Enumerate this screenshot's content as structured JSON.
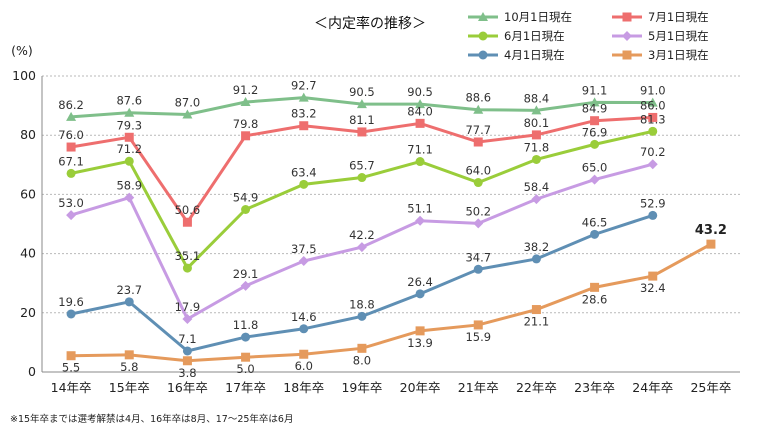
{
  "chart_data": {
    "type": "line",
    "title": "＜内定率の推移＞",
    "ylabel": "(%)",
    "ylim": [
      0,
      100
    ],
    "yticks": [
      0,
      20,
      40,
      60,
      80,
      100
    ],
    "categories": [
      "14年卒",
      "15年卒",
      "16年卒",
      "17年卒",
      "18年卒",
      "19年卒",
      "20年卒",
      "21年卒",
      "22年卒",
      "23年卒",
      "24年卒",
      "25年卒"
    ],
    "series": [
      {
        "name": "10月1日現在",
        "color": "#7fbf8a",
        "marker": "triangle",
        "values": [
          86.2,
          87.6,
          87.0,
          91.2,
          92.7,
          90.5,
          90.5,
          88.6,
          88.4,
          91.1,
          91.0,
          null
        ],
        "labels": [
          "86.2",
          "87.6",
          "87.0",
          "91.2",
          "92.7",
          "90.5",
          "90.5",
          "88.6",
          "88.4",
          "91.1",
          "91.0",
          ""
        ]
      },
      {
        "name": "7月1日現在",
        "color": "#ee6e6e",
        "marker": "square",
        "values": [
          76.0,
          79.3,
          50.6,
          79.8,
          83.2,
          81.1,
          84.0,
          77.7,
          80.1,
          84.9,
          86.0,
          null
        ],
        "labels": [
          "76.0",
          "79.3",
          "50.6",
          "79.8",
          "83.2",
          "81.1",
          "84.0",
          "77.7",
          "80.1",
          "84.9",
          "86.0",
          ""
        ]
      },
      {
        "name": "6月1日現在",
        "color": "#9acd3a",
        "marker": "circle",
        "values": [
          67.1,
          71.2,
          35.1,
          54.9,
          63.4,
          65.7,
          71.1,
          64.0,
          71.8,
          76.9,
          81.3,
          null
        ],
        "labels": [
          "67.1",
          "71.2",
          "35.1",
          "54.9",
          "63.4",
          "65.7",
          "71.1",
          "64.0",
          "71.8",
          "76.9",
          "81.3",
          ""
        ]
      },
      {
        "name": "5月1日現在",
        "color": "#c79be3",
        "marker": "diamond",
        "values": [
          53.0,
          58.9,
          17.9,
          29.1,
          37.5,
          42.2,
          51.1,
          50.2,
          58.4,
          65.0,
          70.2,
          null
        ],
        "labels": [
          "53.0",
          "58.9",
          "17.9",
          "29.1",
          "37.5",
          "42.2",
          "51.1",
          "50.2",
          "58.4",
          "65.0",
          "70.2",
          ""
        ]
      },
      {
        "name": "4月1日現在",
        "color": "#5f8fb4",
        "marker": "circle",
        "values": [
          19.6,
          23.7,
          7.1,
          11.8,
          14.6,
          18.8,
          26.4,
          34.7,
          38.2,
          46.5,
          52.9,
          null
        ],
        "labels": [
          "19.6",
          "23.7",
          "7.1",
          "11.8",
          "14.6",
          "18.8",
          "26.4",
          "34.7",
          "38.2",
          "46.5",
          "52.9",
          ""
        ]
      },
      {
        "name": "3月1日現在",
        "color": "#e59a5c",
        "marker": "square",
        "values": [
          5.5,
          5.8,
          3.8,
          5.0,
          6.0,
          8.0,
          13.9,
          15.9,
          21.1,
          28.6,
          32.4,
          43.2
        ],
        "labels": [
          "5.5",
          "5.8",
          "3.8",
          "5.0",
          "6.0",
          "8.0",
          "13.9",
          "15.9",
          "21.1",
          "28.6",
          "32.4",
          "43.2"
        ]
      }
    ],
    "note": "※15年卒までは選考解禁は4月、16年卒は8月、17～25年卒は6月"
  }
}
